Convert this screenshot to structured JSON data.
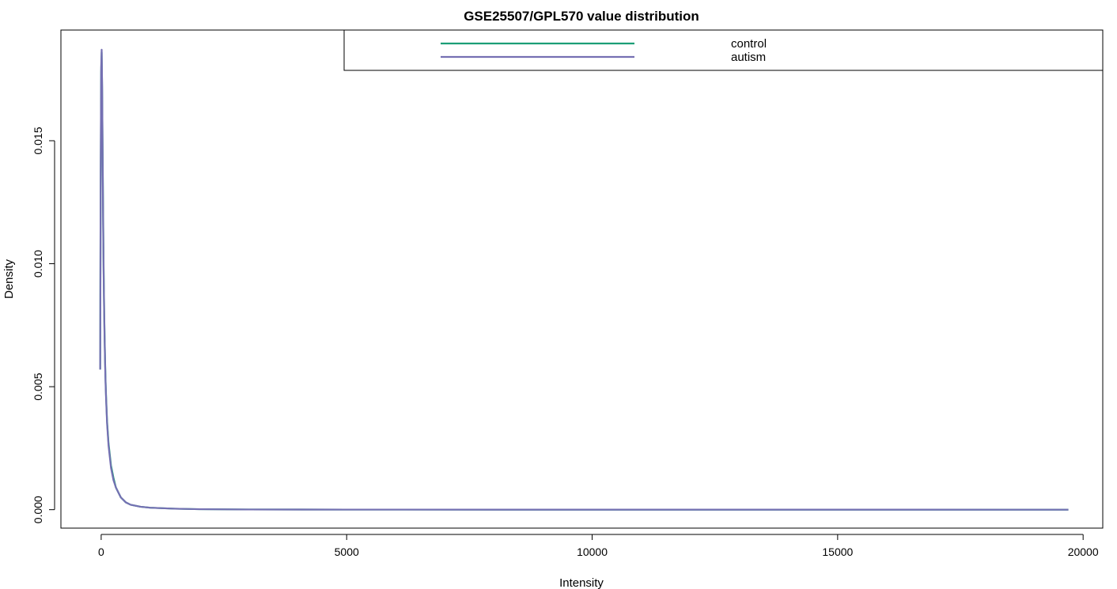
{
  "chart_data": {
    "type": "line",
    "title": "GSE25507/GPL570 value distribution",
    "xlabel": "Intensity",
    "ylabel": "Density",
    "xlim": [
      -820,
      20400
    ],
    "ylim": [
      -0.00075,
      0.0195
    ],
    "x_ticks": [
      {
        "value": 0,
        "label": "0"
      },
      {
        "value": 5000,
        "label": "5000"
      },
      {
        "value": 10000,
        "label": "10000"
      },
      {
        "value": 15000,
        "label": "15000"
      },
      {
        "value": 20000,
        "label": "20000"
      }
    ],
    "y_ticks": [
      {
        "value": 0.0,
        "label": "0.000"
      },
      {
        "value": 0.005,
        "label": "0.005"
      },
      {
        "value": 0.01,
        "label": "0.010"
      },
      {
        "value": 0.015,
        "label": "0.015"
      }
    ],
    "grid": false,
    "legend_position": "top-right",
    "series": [
      {
        "name": "control",
        "color": "#1B9E77",
        "x": [
          -20,
          -10,
          0,
          10,
          20,
          30,
          40,
          50,
          60,
          70,
          80,
          90,
          100,
          120,
          150,
          200,
          250,
          300,
          400,
          500,
          600,
          800,
          1000,
          1500,
          2000,
          3000,
          5000,
          10000,
          15000,
          19700
        ],
        "y": [
          0.0057,
          0.0135,
          0.0178,
          0.0186,
          0.017,
          0.0145,
          0.012,
          0.0098,
          0.0082,
          0.007,
          0.006,
          0.0052,
          0.0046,
          0.0036,
          0.0027,
          0.0018,
          0.0013,
          0.0009,
          0.0005,
          0.0003,
          0.0002,
          0.00012,
          8e-05,
          4e-05,
          2e-05,
          8e-06,
          3e-06,
          1e-06,
          5e-07,
          0.0
        ]
      },
      {
        "name": "autism",
        "color": "#7570B3",
        "x": [
          -20,
          -10,
          0,
          10,
          20,
          30,
          40,
          50,
          60,
          70,
          80,
          90,
          100,
          120,
          150,
          200,
          250,
          300,
          400,
          500,
          600,
          800,
          1000,
          1500,
          2000,
          3000,
          5000,
          10000,
          15000,
          19700
        ],
        "y": [
          0.0057,
          0.0137,
          0.018,
          0.0187,
          0.0172,
          0.0142,
          0.0116,
          0.0096,
          0.0081,
          0.0069,
          0.0059,
          0.0051,
          0.0045,
          0.0035,
          0.0026,
          0.0017,
          0.0012,
          0.0009,
          0.0005,
          0.0003,
          0.0002,
          0.00012,
          8e-05,
          4e-05,
          2e-05,
          8e-06,
          3e-06,
          1e-06,
          5e-07,
          0.0
        ]
      }
    ]
  }
}
